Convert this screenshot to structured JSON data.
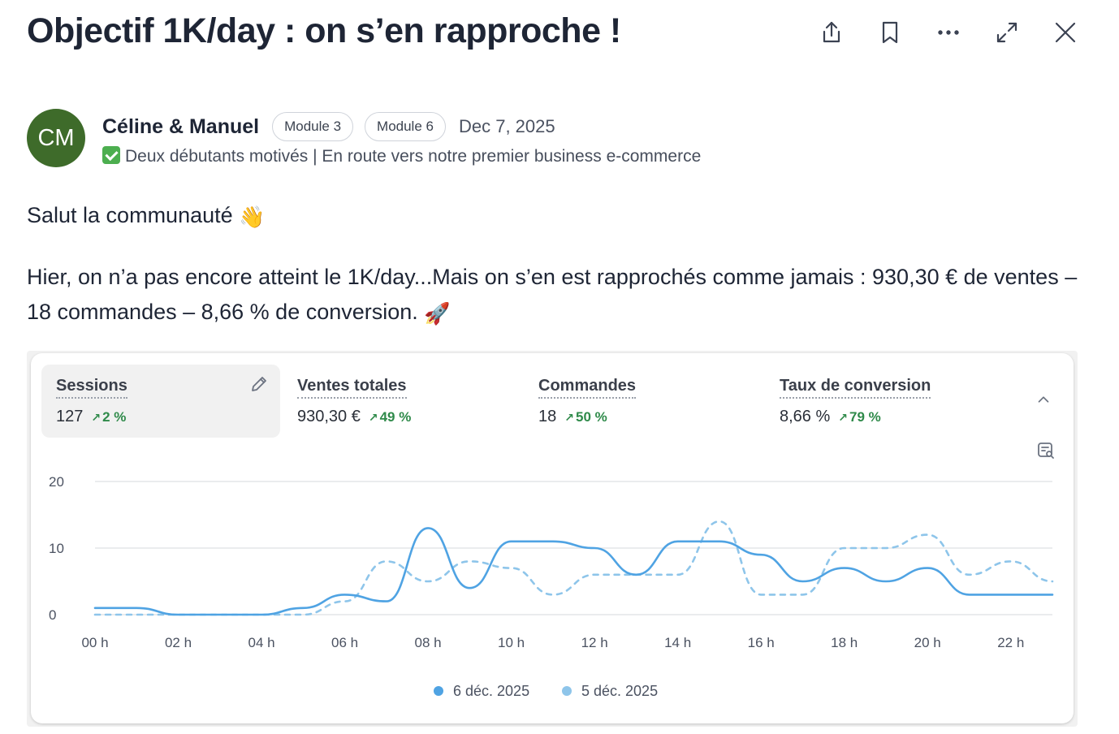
{
  "title": "Objectif 1K/day : on s’en rapproche !",
  "toolbar": {
    "share_icon": "share-icon",
    "bookmark_icon": "bookmark-icon",
    "more_icon": "more-icon",
    "expand_icon": "expand-icon",
    "close_icon": "close-icon"
  },
  "author": {
    "initials": "CM",
    "avatar_color": "#3e6b2a",
    "name": "Céline & Manuel",
    "badges": [
      "Module 3",
      "Module 6"
    ],
    "date": "Dec 7, 2025",
    "bio": "Deux débutants motivés | En route vers notre premier business e-commerce"
  },
  "body": {
    "line1": "Salut la communauté",
    "paragraph": "Hier, on n’a pas encore atteint le 1K/day...Mais on s’en est rapprochés comme jamais : 930,30 € de ventes – 18 commandes – 8,66 % de conversion."
  },
  "metrics": [
    {
      "label": "Sessions",
      "value": "127",
      "delta": "2 %"
    },
    {
      "label": "Ventes totales",
      "value": "930,30 €",
      "delta": "49 %"
    },
    {
      "label": "Commandes",
      "value": "18",
      "delta": "50 %"
    },
    {
      "label": "Taux de conversion",
      "value": "8,66 %",
      "delta": "79 %"
    }
  ],
  "chart_data": {
    "type": "line",
    "x": [
      "00 h",
      "01 h",
      "02 h",
      "03 h",
      "04 h",
      "05 h",
      "06 h",
      "07 h",
      "08 h",
      "09 h",
      "10 h",
      "11 h",
      "12 h",
      "13 h",
      "14 h",
      "15 h",
      "16 h",
      "17 h",
      "18 h",
      "19 h",
      "20 h",
      "21 h",
      "22 h",
      "23 h"
    ],
    "xticks": [
      "00 h",
      "02 h",
      "04 h",
      "06 h",
      "08 h",
      "10 h",
      "12 h",
      "14 h",
      "16 h",
      "18 h",
      "20 h",
      "22 h"
    ],
    "yticks": [
      0,
      10,
      20
    ],
    "ylim": [
      0,
      20
    ],
    "grid": true,
    "legend_position": "bottom",
    "series": [
      {
        "name": "6 déc. 2025",
        "style": "solid",
        "color": "#4fa3e3",
        "values": [
          1,
          1,
          0,
          0,
          0,
          1,
          3,
          2,
          13,
          4,
          11,
          11,
          10,
          6,
          11,
          11,
          9,
          5,
          7,
          5,
          7,
          3,
          3,
          3
        ]
      },
      {
        "name": "5 déc. 2025",
        "style": "dashed",
        "color": "#8ec5ea",
        "values": [
          0,
          0,
          0,
          0,
          0,
          0,
          2,
          8,
          5,
          8,
          7,
          3,
          6,
          6,
          6,
          14,
          3,
          3,
          10,
          10,
          12,
          6,
          8,
          5
        ]
      }
    ]
  }
}
